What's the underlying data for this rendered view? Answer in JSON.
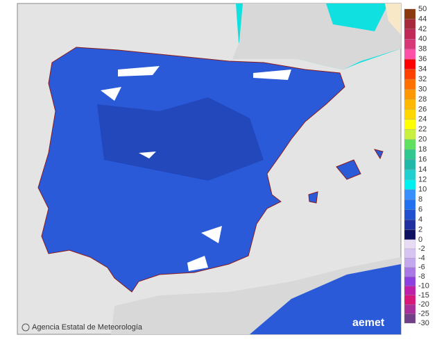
{
  "map": {
    "attribution": "Agencia Estatal de Meteorología",
    "logo": "aemet"
  },
  "legend": {
    "upper": {
      "labels": [
        50,
        44,
        42,
        40,
        38,
        36,
        34,
        32,
        30,
        28,
        26,
        24,
        22,
        20,
        18,
        16,
        14,
        12,
        10,
        8,
        6,
        4,
        2,
        0
      ],
      "colors": [
        "#8b3a10",
        "#a8283c",
        "#c02858",
        "#d83878",
        "#ff50a8",
        "#ff0000",
        "#ff4000",
        "#ff7000",
        "#ff9800",
        "#ffb800",
        "#ffd800",
        "#ffff00",
        "#c8f040",
        "#60e060",
        "#30c890",
        "#20b8a8",
        "#20d0d0",
        "#00f0f0",
        "#3890ff",
        "#2070f0",
        "#2050d0",
        "#2030a0",
        "#101060"
      ]
    },
    "lower": {
      "labels": [
        -2,
        -4,
        -6,
        -8,
        -10,
        -15,
        -20,
        -25,
        -30
      ],
      "colors": [
        "#e8dcf4",
        "#d8c4f0",
        "#c4a8ee",
        "#a878e4",
        "#8c40e0",
        "#c020a8",
        "#d81878",
        "#a83098",
        "#704088"
      ]
    }
  }
}
